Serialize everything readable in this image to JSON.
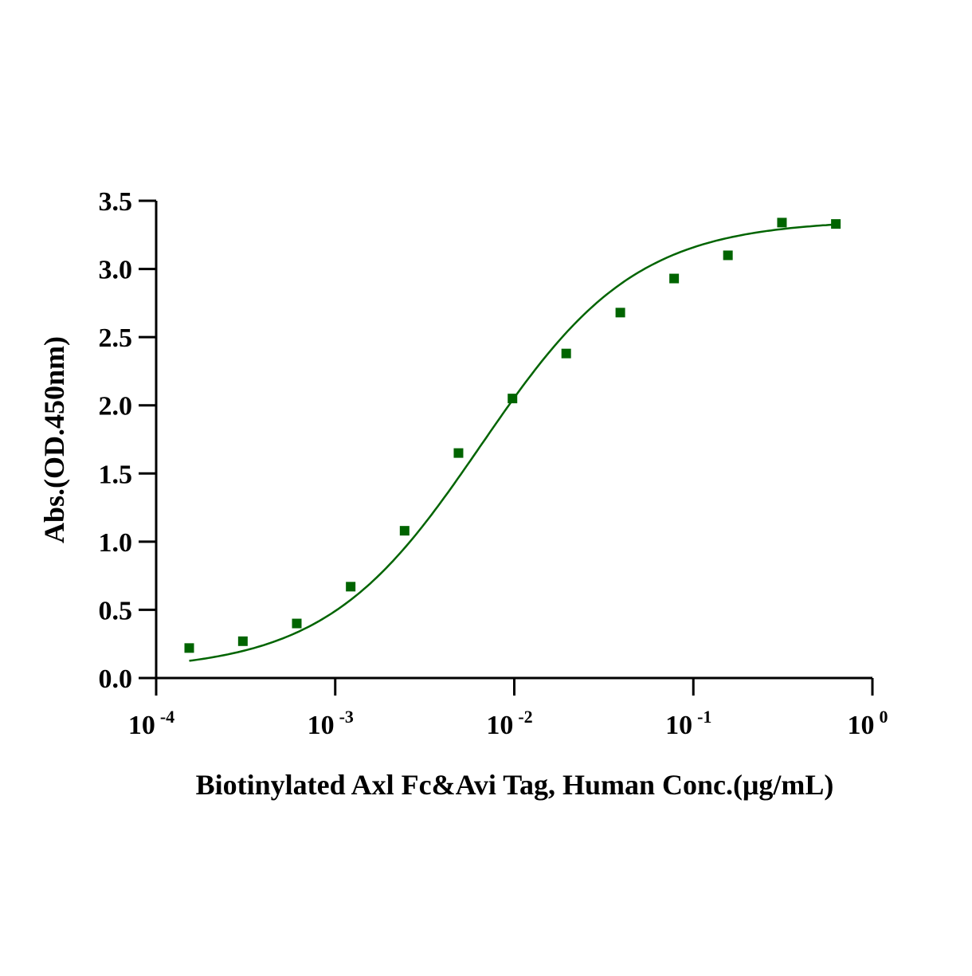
{
  "chart_data": {
    "type": "scatter",
    "title": "",
    "xlabel": "Biotinylated Axl Fc&Avi Tag, Human  Conc.(μg/mL)",
    "ylabel": "Abs.(OD.450nm)",
    "xscale": "log",
    "xlim": [
      0.0001,
      1
    ],
    "ylim": [
      0,
      3.5
    ],
    "yticks": [
      "0.0",
      "0.5",
      "1.0",
      "1.5",
      "2.0",
      "2.5",
      "3.0",
      "3.5"
    ],
    "xticks": [
      {
        "base": "10",
        "exp": "-4"
      },
      {
        "base": "10",
        "exp": "-3"
      },
      {
        "base": "10",
        "exp": "-2"
      },
      {
        "base": "10",
        "exp": "-1"
      },
      {
        "base": "10",
        "exp": "0"
      }
    ],
    "marker_color": "#006400",
    "series": [
      {
        "x": [
          0.000153,
          0.000305,
          0.00061,
          0.00122,
          0.00244,
          0.00488,
          0.00977,
          0.0195,
          0.0391,
          0.0781,
          0.156,
          0.3125,
          0.625
        ],
        "y": [
          0.22,
          0.27,
          0.4,
          0.67,
          1.08,
          1.65,
          2.05,
          2.38,
          2.68,
          2.93,
          3.1,
          3.34,
          3.33
        ]
      }
    ],
    "fit": {
      "model": "4PL",
      "bottom": 0.05,
      "top": 3.36,
      "ec50": 0.0065,
      "hill": 1.0
    },
    "grid": false,
    "legend": "none"
  }
}
